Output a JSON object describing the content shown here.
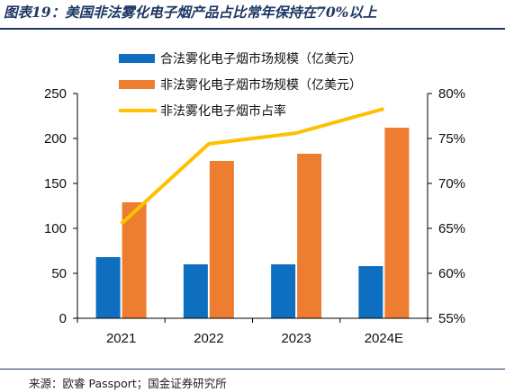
{
  "header": {
    "title": "图表19：美国非法雾化电子烟产品占比常年保持在70%以上"
  },
  "footer": {
    "source": "来源：欧睿 Passport；国金证券研究所"
  },
  "chart_data": {
    "type": "bar",
    "categories": [
      "2021",
      "2022",
      "2023",
      "2024E"
    ],
    "series": [
      {
        "name": "合法雾化电子烟市场规模（亿美元）",
        "kind": "bar",
        "axis": "left",
        "color": "#0e6ebf",
        "values": [
          68,
          60,
          60,
          58
        ]
      },
      {
        "name": "非法雾化电子烟市场规模（亿美元）",
        "kind": "bar",
        "axis": "left",
        "color": "#ed7d31",
        "values": [
          129,
          175,
          183,
          212
        ]
      },
      {
        "name": "非法雾化电子烟市占率",
        "kind": "line",
        "axis": "right",
        "color": "#ffc000",
        "values": [
          65.5,
          74.4,
          75.6,
          78.3
        ]
      }
    ],
    "y_left": {
      "min": 0,
      "max": 250,
      "ticks": [
        "0",
        "50",
        "100",
        "150",
        "200",
        "250"
      ]
    },
    "y_right": {
      "min": 55,
      "max": 80,
      "ticks": [
        "55%",
        "60%",
        "65%",
        "70%",
        "75%",
        "80%"
      ]
    },
    "legend_position": "top-left",
    "grid": false
  }
}
